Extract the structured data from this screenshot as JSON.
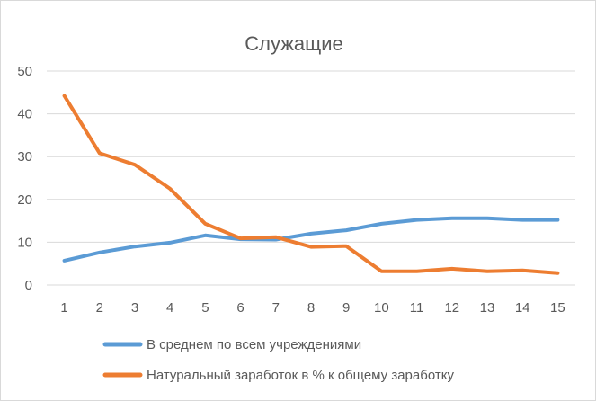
{
  "chart_data": {
    "type": "line",
    "title": "Служащие",
    "x": [
      1,
      2,
      3,
      4,
      5,
      6,
      7,
      8,
      9,
      10,
      11,
      12,
      13,
      14,
      15
    ],
    "ylim": [
      0,
      50
    ],
    "yticks": [
      0,
      10,
      20,
      30,
      40,
      50
    ],
    "grid": true,
    "legend_position": "bottom",
    "series": [
      {
        "name": "В среднем по всем учреждениями",
        "color": "#5b9bd5",
        "values": [
          5.7,
          7.6,
          9.0,
          9.9,
          11.6,
          10.7,
          10.6,
          12.0,
          12.8,
          14.3,
          15.2,
          15.6,
          15.6,
          15.2,
          15.2
        ]
      },
      {
        "name": "Натуральный заработок в % к общему заработку",
        "color": "#ed7d31",
        "values": [
          44.2,
          30.8,
          28.1,
          22.5,
          14.3,
          10.9,
          11.2,
          8.9,
          9.1,
          3.2,
          3.2,
          3.8,
          3.2,
          3.4,
          2.8
        ]
      }
    ]
  }
}
